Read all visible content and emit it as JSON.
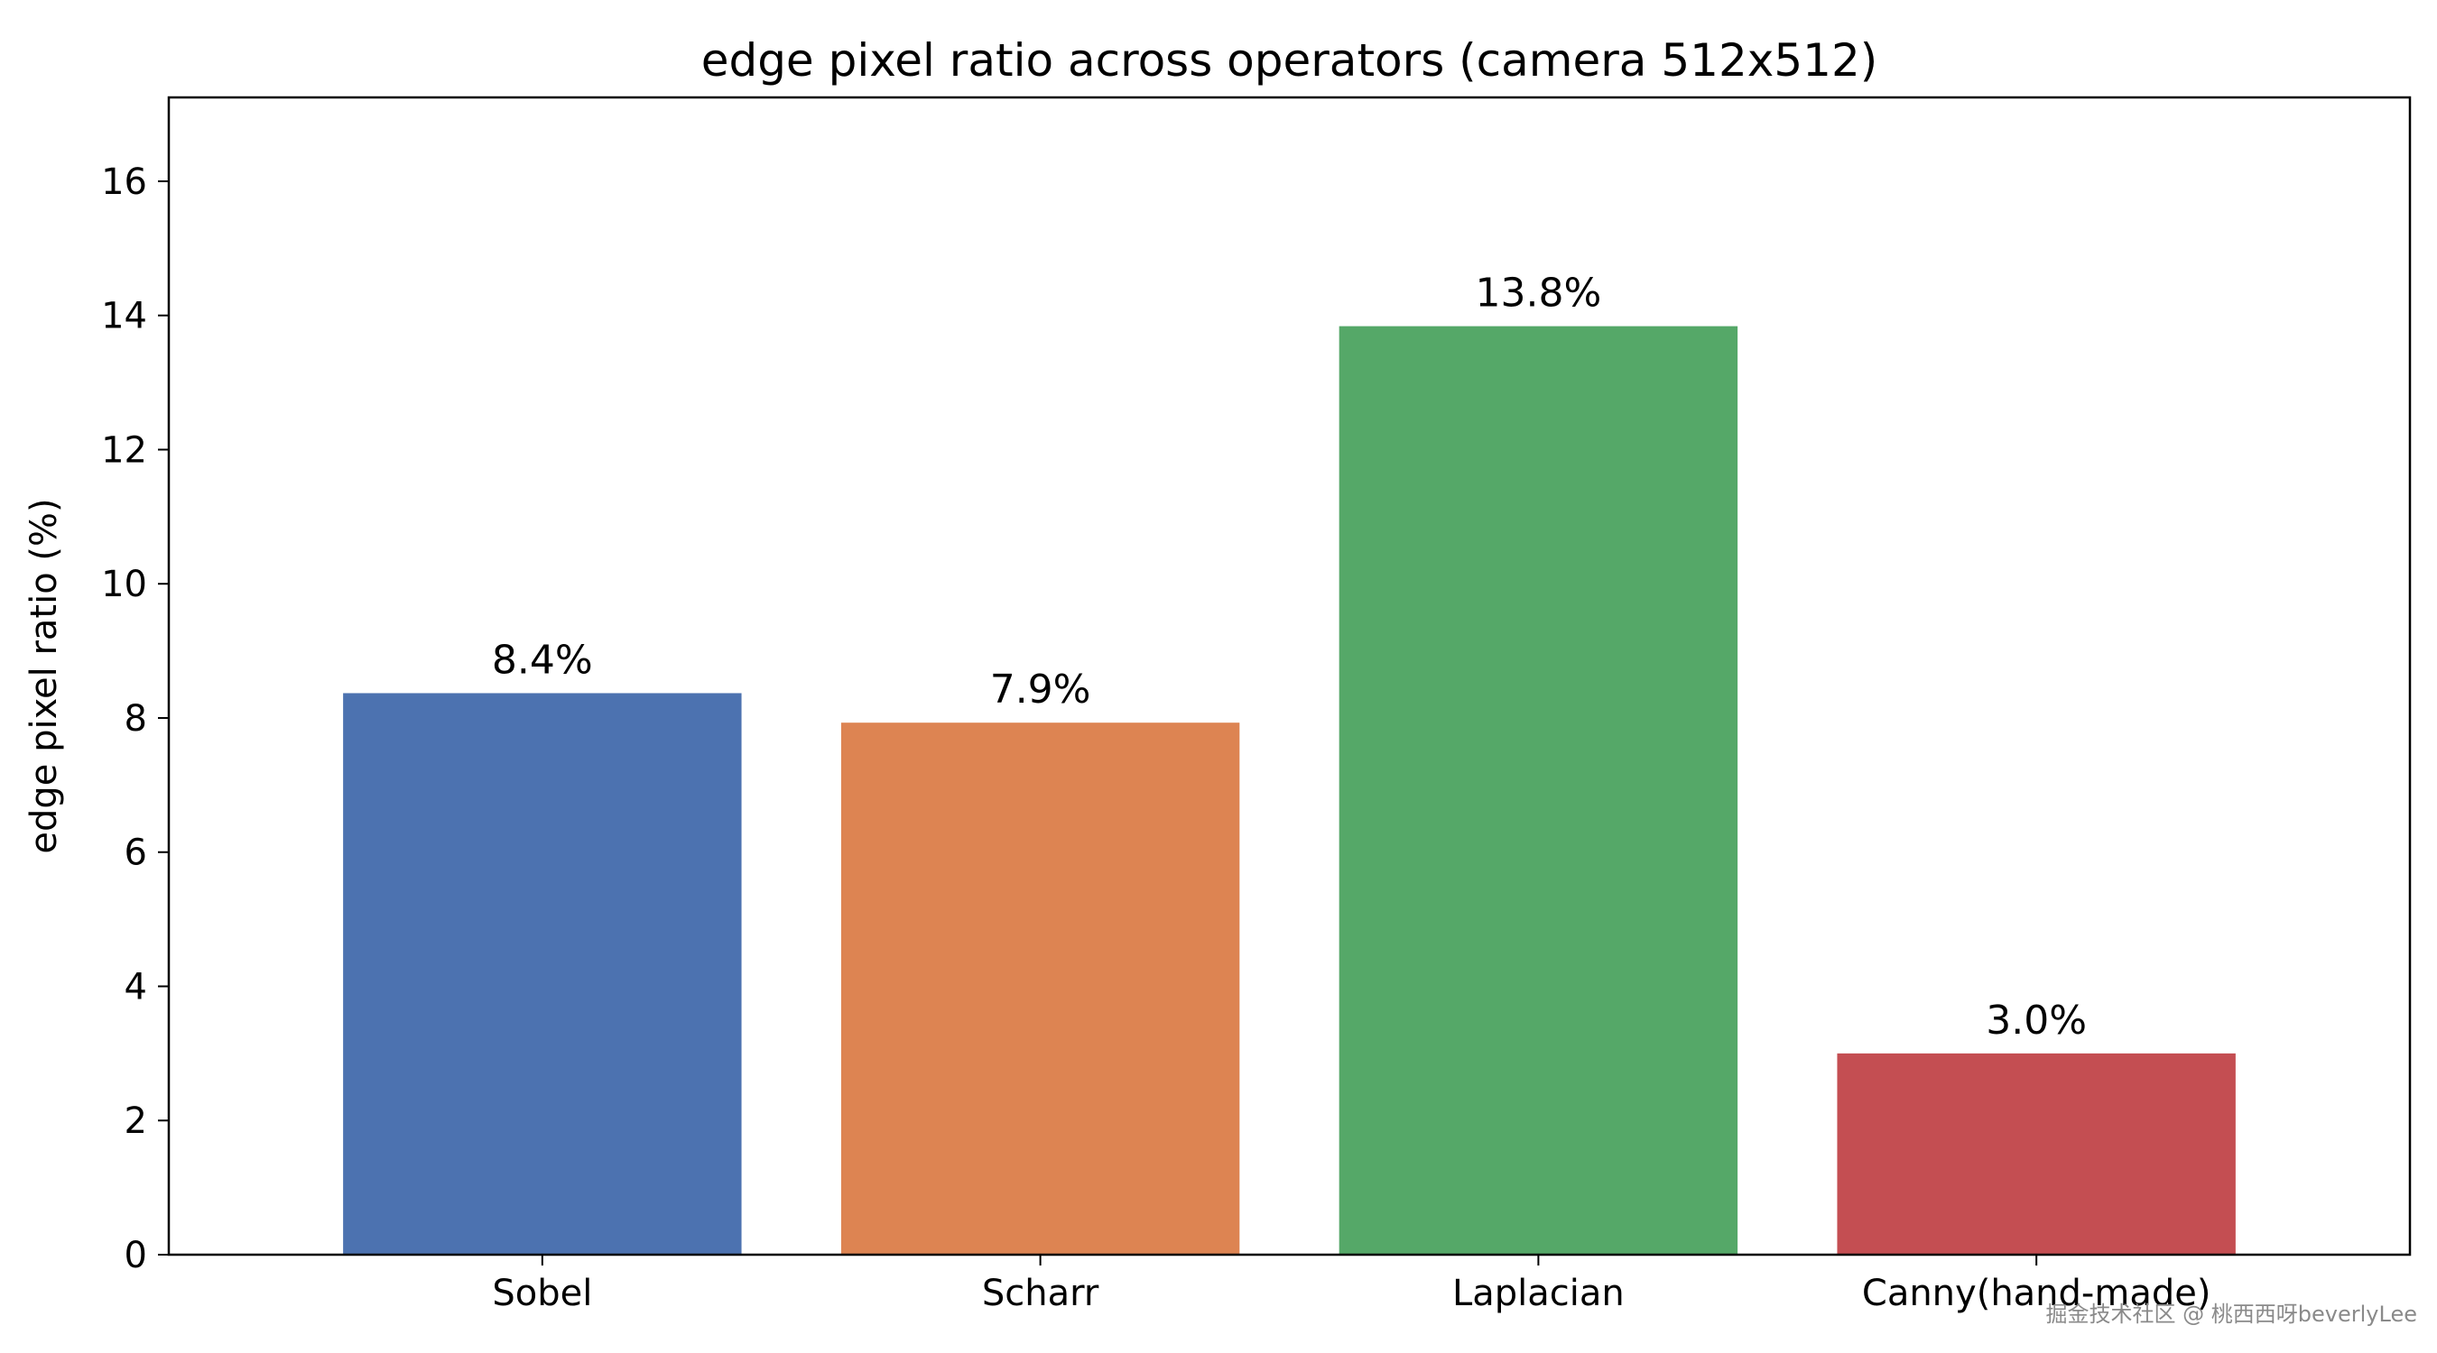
{
  "chart_data": {
    "type": "bar",
    "title": "edge pixel ratio across operators (camera 512x512)",
    "xlabel": "",
    "ylabel": "edge pixel ratio (%)",
    "categories": [
      "Sobel",
      "Scharr",
      "Laplacian",
      "Canny(hand-made)"
    ],
    "values": [
      8.37,
      7.93,
      13.84,
      3.0
    ],
    "data_labels": [
      "8.4%",
      "7.9%",
      "13.8%",
      "3.0%"
    ],
    "colors": [
      "#4c72b0",
      "#dd8452",
      "#55a868",
      "#c44e52"
    ],
    "ylim": [
      0,
      17.25
    ],
    "yticks": [
      0,
      2,
      4,
      6,
      8,
      10,
      12,
      14,
      16
    ],
    "grid": false,
    "legend": "none"
  },
  "watermark": "掘金技术社区 @ 桃西西呀beverlyLee"
}
